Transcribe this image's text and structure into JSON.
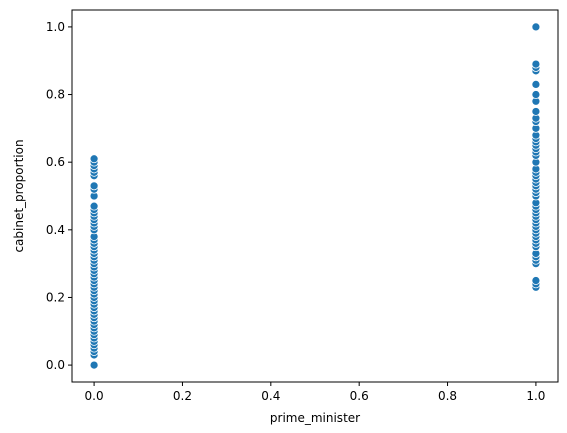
{
  "chart_data": {
    "type": "scatter",
    "xlabel": "prime_minister",
    "ylabel": "cabinet_proportion",
    "xlim": [
      -0.05,
      1.05
    ],
    "ylim": [
      -0.05,
      1.05
    ],
    "xticks": [
      "0.0",
      "0.2",
      "0.4",
      "0.6",
      "0.8",
      "1.0"
    ],
    "yticks": [
      "0.0",
      "0.2",
      "0.4",
      "0.6",
      "0.8",
      "1.0"
    ],
    "grid": false,
    "marker_color": "#1f77b4",
    "series": [
      {
        "x": 0,
        "y": [
          0.0,
          0.03,
          0.04,
          0.05,
          0.06,
          0.07,
          0.08,
          0.09,
          0.1,
          0.11,
          0.12,
          0.13,
          0.14,
          0.15,
          0.16,
          0.17,
          0.18,
          0.19,
          0.2,
          0.21,
          0.22,
          0.23,
          0.24,
          0.25,
          0.26,
          0.27,
          0.28,
          0.29,
          0.3,
          0.31,
          0.32,
          0.33,
          0.34,
          0.35,
          0.36,
          0.37,
          0.38,
          0.4,
          0.41,
          0.42,
          0.43,
          0.44,
          0.45,
          0.46,
          0.47,
          0.5,
          0.52,
          0.53,
          0.56,
          0.57,
          0.58,
          0.59,
          0.6,
          0.61
        ]
      },
      {
        "x": 1,
        "y": [
          0.23,
          0.24,
          0.25,
          0.3,
          0.31,
          0.32,
          0.33,
          0.35,
          0.36,
          0.37,
          0.38,
          0.39,
          0.4,
          0.41,
          0.42,
          0.43,
          0.44,
          0.45,
          0.46,
          0.47,
          0.48,
          0.5,
          0.51,
          0.52,
          0.53,
          0.54,
          0.55,
          0.56,
          0.57,
          0.58,
          0.6,
          0.62,
          0.63,
          0.64,
          0.65,
          0.66,
          0.67,
          0.68,
          0.7,
          0.72,
          0.73,
          0.75,
          0.78,
          0.8,
          0.83,
          0.87,
          0.88,
          0.89,
          1.0
        ]
      }
    ]
  }
}
